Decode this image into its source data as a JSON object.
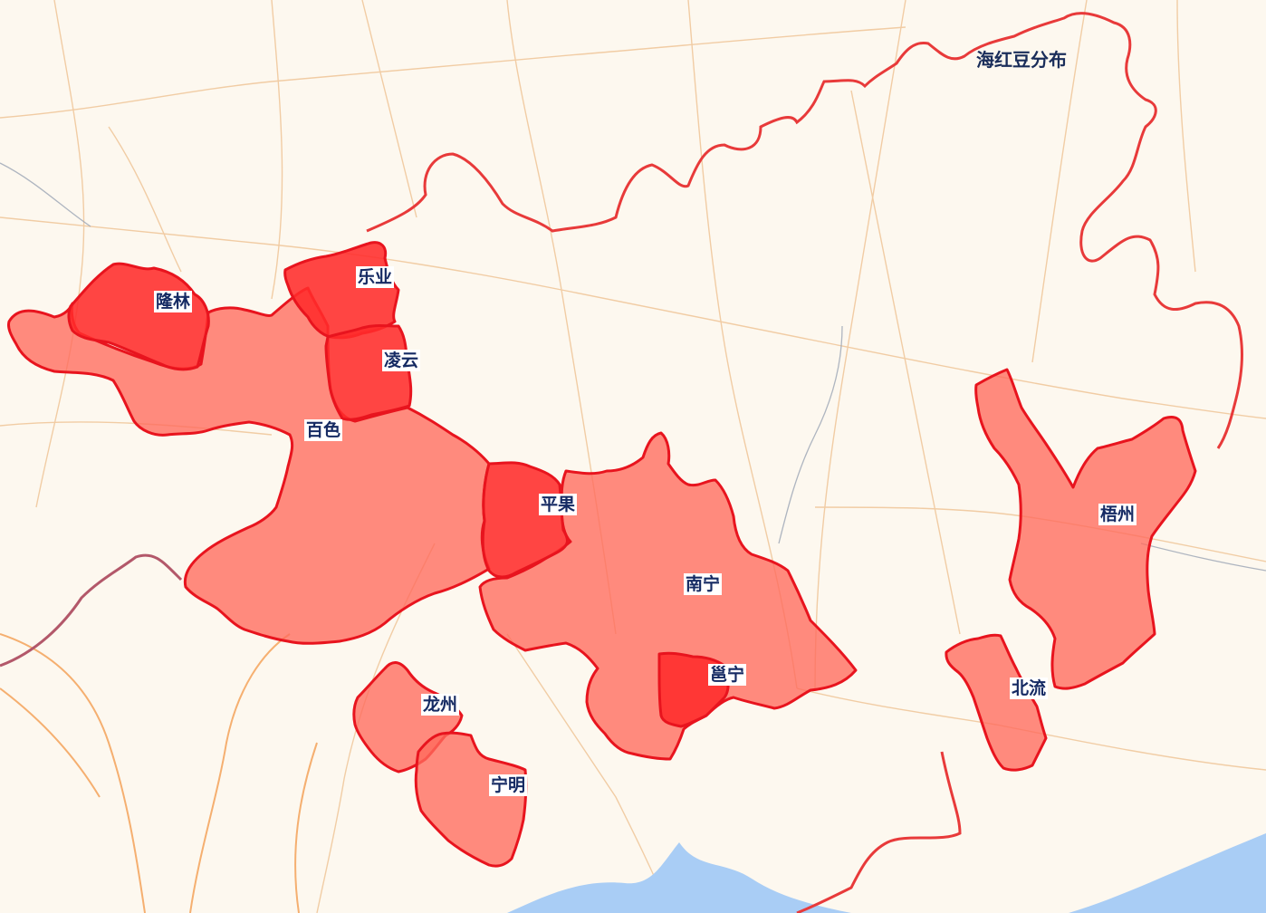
{
  "map": {
    "title": "海红豆分布",
    "colors": {
      "background": "#fdf8ef",
      "sea": "#a9cdf5",
      "region_high": "#ff2b2b",
      "region_medium": "#ff6a5c",
      "region_border": "#e8141e",
      "province_border": "#e83a3a",
      "country_border": "#b3586a"
    },
    "regions": [
      {
        "id": "longlin",
        "name": "隆林",
        "level": "high"
      },
      {
        "id": "leye",
        "name": "乐业",
        "level": "high"
      },
      {
        "id": "lingyun",
        "name": "凌云",
        "level": "high"
      },
      {
        "id": "baise",
        "name": "百色",
        "level": "medium"
      },
      {
        "id": "pingguo",
        "name": "平果",
        "level": "high"
      },
      {
        "id": "nanning",
        "name": "南宁",
        "level": "medium"
      },
      {
        "id": "yongning",
        "name": "邕宁",
        "level": "high"
      },
      {
        "id": "longzhou",
        "name": "龙州",
        "level": "medium"
      },
      {
        "id": "ningming",
        "name": "宁明",
        "level": "medium"
      },
      {
        "id": "wuzhou",
        "name": "梧州",
        "level": "medium"
      },
      {
        "id": "beiliu",
        "name": "北流",
        "level": "medium"
      }
    ]
  }
}
